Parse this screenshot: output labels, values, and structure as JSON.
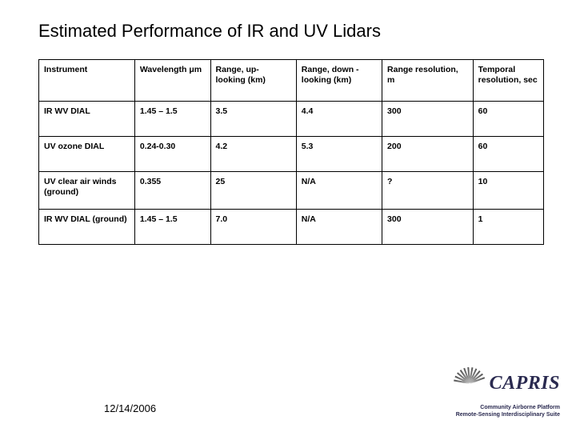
{
  "title": "Estimated Performance of IR and UV Lidars",
  "table": {
    "cols": [
      "Instrument",
      "Wavelength\nμm",
      "Range, up-\nlooking (km)",
      "Range, down\n-looking (km)",
      "Range\nresolution, m",
      "Temporal\nresolution,\nsec"
    ],
    "rows": [
      [
        "IR WV DIAL",
        "1.45 – 1.5",
        "3.5",
        "4.4",
        "300",
        "60"
      ],
      [
        "UV ozone DIAL",
        "0.24-0.30",
        "4.2",
        "5.3",
        "200",
        "60"
      ],
      [
        "UV clear air winds (ground)",
        "0.355",
        "25",
        "N/A",
        "?",
        "10"
      ],
      [
        "IR WV DIAL (ground)",
        "1.45 – 1.5",
        "7.0",
        "N/A",
        "300",
        "1"
      ]
    ]
  },
  "footer_date": "12/14/2006",
  "logo": {
    "name": "CAPRIS",
    "sub1": "Community Airborne Platform",
    "sub2": "Remote-Sensing Interdisciplinary Suite"
  },
  "colors": {
    "title": "#000000",
    "border": "#000000",
    "text": "#000000",
    "logo_text": "#2a2a50"
  }
}
